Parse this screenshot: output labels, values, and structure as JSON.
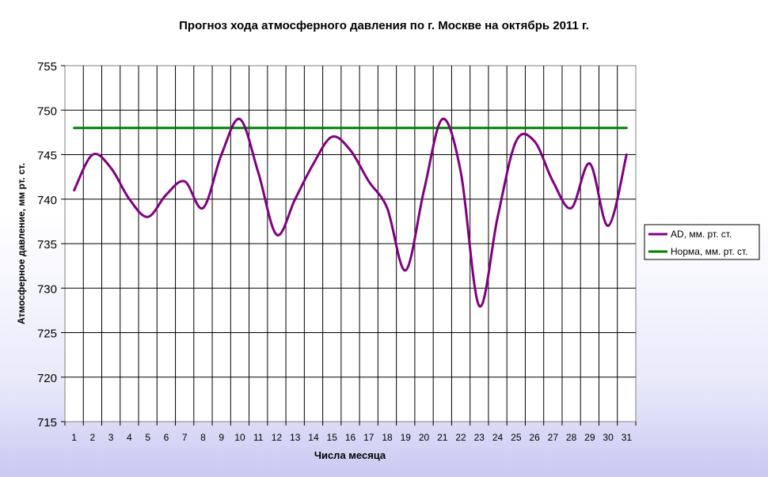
{
  "chart_data": {
    "type": "line",
    "title": "Прогноз хода атмосферного давления по г. Москве на октябрь 2011 г.",
    "xlabel": "Числа месяца",
    "ylabel": "Атмосферное давление, мм рт. ст.",
    "x": [
      1,
      2,
      3,
      4,
      5,
      6,
      7,
      8,
      9,
      10,
      11,
      12,
      13,
      14,
      15,
      16,
      17,
      18,
      19,
      20,
      21,
      22,
      23,
      24,
      25,
      26,
      27,
      28,
      29,
      30,
      31
    ],
    "ylim": [
      715,
      755
    ],
    "yticks": [
      715,
      720,
      725,
      730,
      735,
      740,
      745,
      750,
      755
    ],
    "grid": true,
    "legend_position": "right",
    "series": [
      {
        "name": "АD, мм. рт. ст.",
        "color": "#800080",
        "values": [
          741,
          745,
          743.5,
          740,
          738,
          740.5,
          742,
          739,
          745,
          749,
          743,
          736,
          740,
          744,
          747,
          745.5,
          742,
          739,
          732,
          741,
          749,
          743,
          728,
          738,
          746.5,
          746.5,
          742,
          739,
          744,
          737,
          745
        ]
      },
      {
        "name": "Норма, мм. рт. ст.",
        "color": "#008000",
        "values": [
          748,
          748,
          748,
          748,
          748,
          748,
          748,
          748,
          748,
          748,
          748,
          748,
          748,
          748,
          748,
          748,
          748,
          748,
          748,
          748,
          748,
          748,
          748,
          748,
          748,
          748,
          748,
          748,
          748,
          748,
          748
        ]
      }
    ]
  }
}
